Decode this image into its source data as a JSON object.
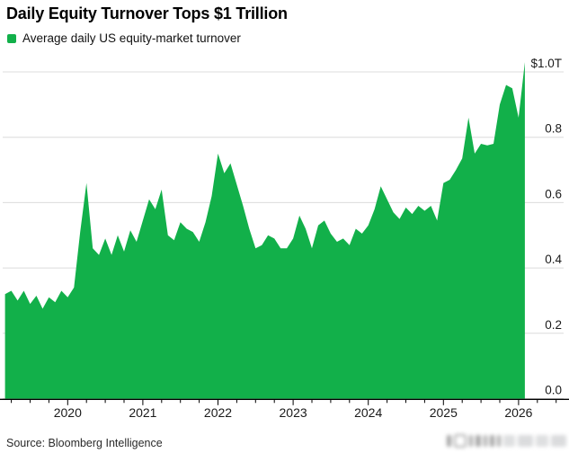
{
  "header": {
    "title": "Daily Equity Turnover Tops $1 Trillion"
  },
  "legend": {
    "label": "Average daily US equity-market turnover"
  },
  "footer": {
    "source": "Source: Bloomberg Intelligence"
  },
  "colors": {
    "series_green": "#12b04a",
    "gridline": "#dcdcdc",
    "axis": "#000000",
    "tick_label": "#1a1a1a"
  },
  "chart_data": {
    "type": "area",
    "title": "Daily Equity Turnover Tops $1 Trillion",
    "series_name": "Average daily US equity-market turnover",
    "unit": "USD trillions per day",
    "frequency": "monthly",
    "start": "2019-03",
    "end": "2026-02",
    "values": [
      0.32,
      0.33,
      0.3,
      0.33,
      0.29,
      0.315,
      0.275,
      0.31,
      0.295,
      0.33,
      0.31,
      0.34,
      0.51,
      0.66,
      0.46,
      0.44,
      0.49,
      0.44,
      0.5,
      0.45,
      0.515,
      0.48,
      0.545,
      0.61,
      0.58,
      0.64,
      0.5,
      0.485,
      0.54,
      0.52,
      0.51,
      0.48,
      0.54,
      0.62,
      0.75,
      0.69,
      0.72,
      0.655,
      0.59,
      0.52,
      0.46,
      0.47,
      0.5,
      0.49,
      0.46,
      0.46,
      0.49,
      0.56,
      0.52,
      0.46,
      0.53,
      0.545,
      0.505,
      0.48,
      0.49,
      0.47,
      0.52,
      0.505,
      0.53,
      0.58,
      0.65,
      0.61,
      0.57,
      0.55,
      0.585,
      0.565,
      0.59,
      0.575,
      0.59,
      0.545,
      0.66,
      0.67,
      0.7,
      0.735,
      0.86,
      0.75,
      0.78,
      0.775,
      0.78,
      0.9,
      0.96,
      0.95,
      0.86,
      1.03
    ],
    "ylim": [
      0,
      1.05
    ],
    "y_ticks": [
      0,
      0.2,
      0.4,
      0.6,
      0.8,
      1.0
    ],
    "y_tick_labels": [
      "0.0",
      "0.2",
      "0.4",
      "0.6",
      "0.8",
      "$1.0T"
    ],
    "x_tick_years": [
      "2020",
      "2021",
      "2022",
      "2023",
      "2024",
      "2025",
      "2026"
    ],
    "grid": true,
    "legend_position": "top-left",
    "color": "#12b04a"
  }
}
